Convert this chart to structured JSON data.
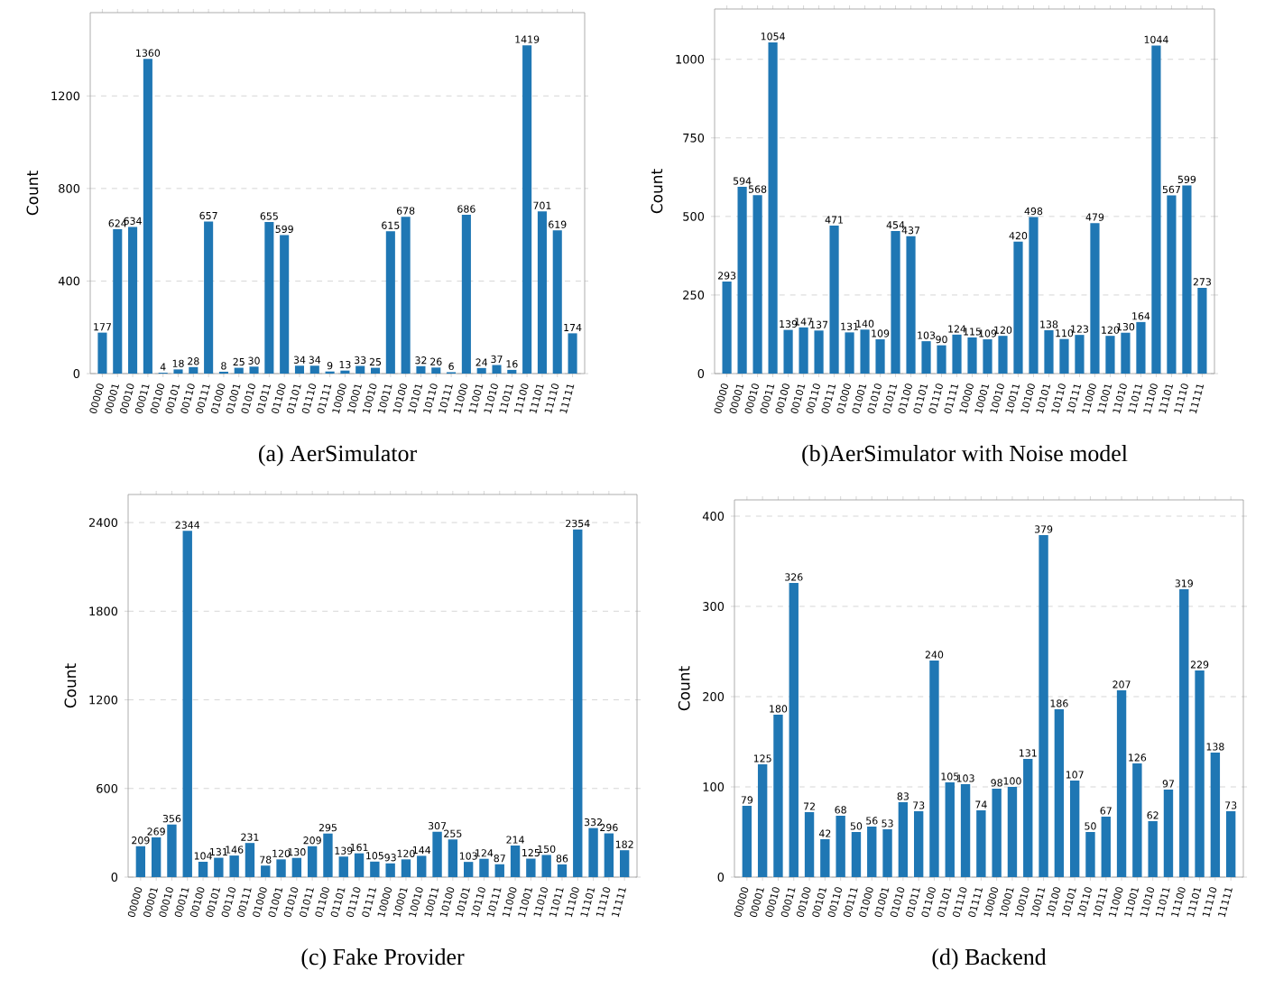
{
  "chart_data": [
    {
      "type": "bar",
      "title": "(a) AerSimulator",
      "ylabel": "Count",
      "color": "#1f77b4",
      "grid": "y",
      "data_labels": true,
      "ylim": [
        0,
        1560
      ],
      "yticks": [
        0,
        400,
        800,
        1200
      ],
      "categories": [
        "00000",
        "00001",
        "00010",
        "00011",
        "00100",
        "00101",
        "00110",
        "00111",
        "01000",
        "01001",
        "01010",
        "01011",
        "01100",
        "01101",
        "01110",
        "01111",
        "10000",
        "10001",
        "10010",
        "10011",
        "10100",
        "10101",
        "10110",
        "10111",
        "11000",
        "11001",
        "11010",
        "11011",
        "11100",
        "11101",
        "11110",
        "11111"
      ],
      "values": [
        177,
        624,
        634,
        1360,
        4,
        18,
        28,
        657,
        8,
        25,
        30,
        655,
        599,
        34,
        34,
        9,
        13,
        33,
        25,
        615,
        678,
        32,
        26,
        6,
        686,
        24,
        37,
        16,
        1419,
        701,
        619,
        174
      ]
    },
    {
      "type": "bar",
      "title": "(b)AerSimulator with Noise model",
      "ylabel": "Count",
      "color": "#1f77b4",
      "grid": "y",
      "data_labels": true,
      "ylim": [
        0,
        1160
      ],
      "yticks": [
        0,
        250,
        500,
        750,
        1000
      ],
      "categories": [
        "00000",
        "00001",
        "00010",
        "00011",
        "00100",
        "00101",
        "00110",
        "00111",
        "01000",
        "01001",
        "01010",
        "01011",
        "01100",
        "01101",
        "01110",
        "01111",
        "10000",
        "10001",
        "10010",
        "10011",
        "10100",
        "10101",
        "10110",
        "10111",
        "11000",
        "11001",
        "11010",
        "11011",
        "11100",
        "11101",
        "11110",
        "11111"
      ],
      "values": [
        293,
        594,
        568,
        1054,
        139,
        147,
        137,
        471,
        131,
        140,
        109,
        454,
        437,
        103,
        90,
        124,
        115,
        109,
        120,
        420,
        498,
        138,
        110,
        123,
        479,
        120,
        130,
        164,
        1044,
        567,
        599,
        273
      ]
    },
    {
      "type": "bar",
      "title": "(c) Fake Provider",
      "ylabel": "Count",
      "color": "#1f77b4",
      "grid": "y",
      "data_labels": true,
      "ylim": [
        0,
        2590
      ],
      "yticks": [
        0,
        600,
        1200,
        1800,
        2400
      ],
      "categories": [
        "00000",
        "00001",
        "00010",
        "00011",
        "00100",
        "00101",
        "00110",
        "00111",
        "01000",
        "01001",
        "01010",
        "01011",
        "01100",
        "01101",
        "01110",
        "01111",
        "10000",
        "10001",
        "10010",
        "10011",
        "10100",
        "10101",
        "10110",
        "10111",
        "11000",
        "11001",
        "11010",
        "11011",
        "11100",
        "11101",
        "11110",
        "11111"
      ],
      "values": [
        209,
        269,
        356,
        2344,
        104,
        131,
        146,
        231,
        78,
        120,
        130,
        209,
        295,
        139,
        161,
        105,
        93,
        120,
        144,
        307,
        255,
        103,
        124,
        87,
        214,
        125,
        150,
        86,
        2354,
        332,
        296,
        182
      ]
    },
    {
      "type": "bar",
      "title": "(d) Backend",
      "ylabel": "Count",
      "color": "#1f77b4",
      "grid": "y",
      "data_labels": true,
      "ylim": [
        0,
        418
      ],
      "yticks": [
        0,
        100,
        200,
        300,
        400
      ],
      "categories": [
        "00000",
        "00001",
        "00010",
        "00011",
        "00100",
        "00101",
        "00110",
        "00111",
        "01000",
        "01001",
        "01010",
        "01011",
        "01100",
        "01101",
        "01110",
        "01111",
        "10000",
        "10001",
        "10010",
        "10011",
        "10100",
        "10101",
        "10110",
        "10111",
        "11000",
        "11001",
        "11010",
        "11011",
        "11100",
        "11101",
        "11110",
        "11111"
      ],
      "values": [
        79,
        125,
        180,
        326,
        72,
        42,
        68,
        50,
        56,
        53,
        83,
        73,
        240,
        105,
        103,
        74,
        98,
        100,
        131,
        379,
        186,
        107,
        50,
        67,
        207,
        126,
        62,
        97,
        319,
        229,
        138,
        73
      ]
    }
  ]
}
